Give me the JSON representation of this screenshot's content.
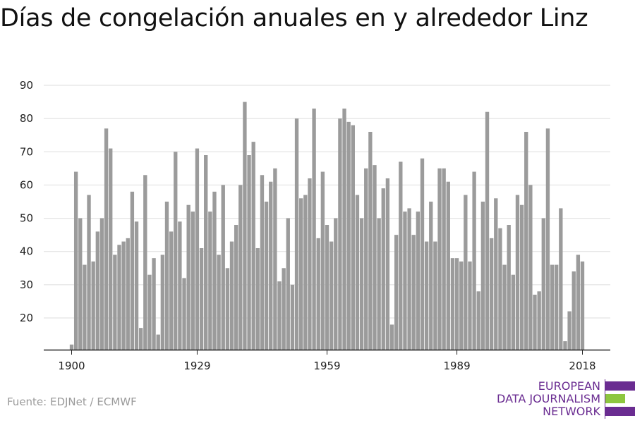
{
  "title": "Días de congelación anuales en y alrededor Linz",
  "source": "Fuente: EDJNet / ECMWF",
  "logo": {
    "lines": [
      "EUROPEAN",
      "DATA JOURNALISM",
      "NETWORK"
    ],
    "colors": {
      "purple": "#6a2c91",
      "green": "#8dc63f"
    }
  },
  "colors": {
    "bar": "#9b9b9b",
    "grid": "#dddddd",
    "axis": "#222222"
  },
  "chart_data": {
    "type": "bar",
    "x_start_year": 1900,
    "x_end_year": 2018,
    "x_tick_labels": [
      "1900",
      "1929",
      "1959",
      "1989",
      "2018"
    ],
    "y_tick_labels": [
      20,
      30,
      40,
      50,
      60,
      70,
      80,
      90
    ],
    "ylim": [
      12,
      90
    ],
    "grid": true,
    "series": [
      {
        "values": [
          12,
          64,
          50,
          36,
          57,
          37,
          46,
          50,
          77,
          71,
          39,
          42,
          43,
          44,
          58,
          49,
          17,
          63,
          33,
          38,
          15,
          39,
          55,
          46,
          70,
          49,
          32,
          54,
          52,
          71,
          41,
          69,
          52,
          58,
          39,
          60,
          35,
          43,
          48,
          60,
          85,
          69,
          73,
          41,
          63,
          55,
          61,
          65,
          31,
          35,
          50,
          30,
          80,
          56,
          57,
          62,
          83,
          44,
          64,
          48,
          43,
          50,
          80,
          83,
          79,
          78,
          57,
          50,
          65,
          76,
          66,
          50,
          59,
          62,
          18,
          45,
          67,
          52,
          53,
          45,
          52,
          68,
          43,
          55,
          43,
          65,
          65,
          61,
          38,
          38,
          37,
          57,
          37,
          64,
          28,
          55,
          82,
          44,
          56,
          47,
          36,
          48,
          33,
          57,
          54,
          76,
          60,
          27,
          28,
          50,
          77,
          36,
          36,
          53,
          13,
          22,
          34,
          39,
          37
        ]
      }
    ]
  }
}
